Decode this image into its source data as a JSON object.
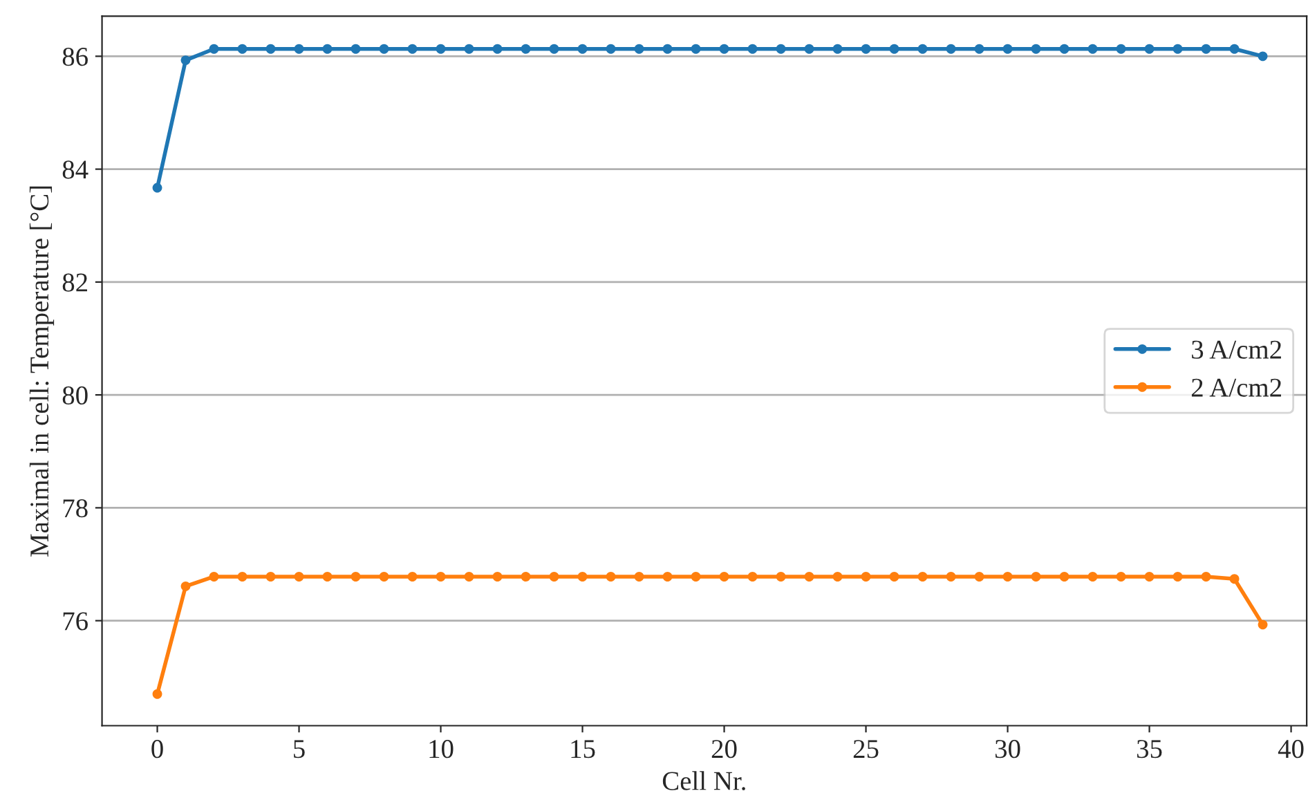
{
  "chart_data": {
    "type": "line",
    "xlabel": "Cell Nr.",
    "ylabel": "Maximal in cell: Temperature [°C]",
    "x": [
      0,
      1,
      2,
      3,
      4,
      5,
      6,
      7,
      8,
      9,
      10,
      11,
      12,
      13,
      14,
      15,
      16,
      17,
      18,
      19,
      20,
      21,
      22,
      23,
      24,
      25,
      26,
      27,
      28,
      29,
      30,
      31,
      32,
      33,
      34,
      35,
      36,
      37,
      38,
      39
    ],
    "series": [
      {
        "name": "3 A/cm2",
        "color": "#1f77b4",
        "values": [
          83.67,
          85.93,
          86.13,
          86.13,
          86.13,
          86.13,
          86.13,
          86.13,
          86.13,
          86.13,
          86.13,
          86.13,
          86.13,
          86.13,
          86.13,
          86.13,
          86.13,
          86.13,
          86.13,
          86.13,
          86.13,
          86.13,
          86.13,
          86.13,
          86.13,
          86.13,
          86.13,
          86.13,
          86.13,
          86.13,
          86.13,
          86.13,
          86.13,
          86.13,
          86.13,
          86.13,
          86.13,
          86.13,
          86.13,
          86.0
        ]
      },
      {
        "name": "2 A/cm2",
        "color": "#ff7f0e",
        "values": [
          74.7,
          76.61,
          76.78,
          76.78,
          76.78,
          76.78,
          76.78,
          76.78,
          76.78,
          76.78,
          76.78,
          76.78,
          76.78,
          76.78,
          76.78,
          76.78,
          76.78,
          76.78,
          76.78,
          76.78,
          76.78,
          76.78,
          76.78,
          76.78,
          76.78,
          76.78,
          76.78,
          76.78,
          76.78,
          76.78,
          76.78,
          76.78,
          76.78,
          76.78,
          76.78,
          76.78,
          76.78,
          76.78,
          76.74,
          75.93
        ]
      }
    ],
    "xlim": [
      -1.95,
      40.55
    ],
    "ylim": [
      74.14,
      86.71
    ],
    "xticks": [
      0,
      5,
      10,
      15,
      20,
      25,
      30,
      35,
      40
    ],
    "yticks": [
      76,
      78,
      80,
      82,
      84,
      86
    ],
    "grid": "y",
    "legend": "right",
    "marker": "circle",
    "line_style": "solid"
  }
}
